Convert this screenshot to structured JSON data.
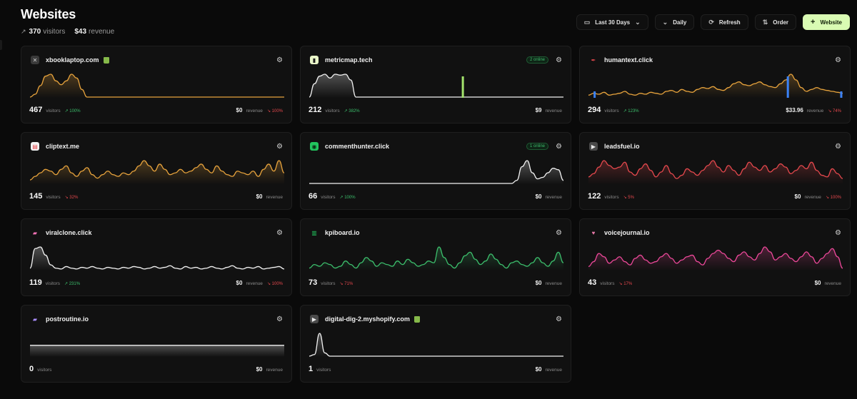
{
  "header": {
    "title": "Websites",
    "visitors": "370",
    "visitors_label": "visitors",
    "revenue": "$43",
    "revenue_label": "revenue"
  },
  "toolbar": {
    "range_label": "Last 30 Days",
    "interval_label": "Daily",
    "refresh_label": "Refresh",
    "order_label": "Order",
    "add_label": "Website"
  },
  "colors": {
    "accent": "#d9fbb3",
    "up": "#3cbf6c",
    "down": "#e5484d"
  },
  "sites": [
    {
      "name": "xbooklaptop.com",
      "favicon": "x-circle-icon",
      "fav_bg": "#3a3a3a",
      "fav_fg": "#cfcfcf",
      "fav_glyph": "✕",
      "shopify": true,
      "online": "",
      "visitors": "467",
      "visitors_label": "visitors",
      "visitors_change": "100%",
      "visitors_dir": "up",
      "revenue": "$0",
      "revenue_label": "revenue",
      "revenue_change": "100%",
      "revenue_dir": "down",
      "line_color": "#e6a23c",
      "series": [
        0,
        3,
        12,
        22,
        24,
        17,
        13,
        17,
        24,
        20,
        8,
        0,
        0,
        0,
        0,
        0,
        0,
        0,
        0,
        0,
        0,
        0,
        0,
        0,
        0,
        0,
        0,
        0,
        0,
        0,
        0,
        0,
        0,
        0,
        0,
        0,
        0,
        0,
        0,
        0,
        0,
        0,
        0,
        0,
        0,
        0,
        0,
        0,
        0,
        0
      ]
    },
    {
      "name": "metricmap.tech",
      "favicon": "bar-chart-icon",
      "fav_bg": "#e8f5c8",
      "fav_fg": "#1a1a1a",
      "fav_glyph": "▮",
      "shopify": false,
      "online": "2 online",
      "visitors": "212",
      "visitors_label": "visitors",
      "visitors_change": "382%",
      "visitors_dir": "up",
      "revenue": "$9",
      "revenue_label": "revenue",
      "revenue_change": "",
      "revenue_dir": "",
      "line_color": "#f2f2f2",
      "series": [
        0,
        14,
        22,
        24,
        20,
        24,
        23,
        24,
        18,
        0,
        0,
        0,
        0,
        0,
        0,
        0,
        0,
        0,
        0,
        0,
        0,
        0,
        0,
        0,
        0,
        0,
        0,
        0,
        0,
        0,
        0,
        0,
        0,
        0,
        0,
        0,
        0,
        0,
        0,
        0,
        0,
        0,
        0,
        0,
        0,
        0,
        0,
        0,
        0,
        0
      ],
      "bars": [
        {
          "x": 0.6,
          "v": 1.0
        }
      ],
      "bar_color": "#a3e36c"
    },
    {
      "name": "humantext.click",
      "favicon": "quill-icon",
      "fav_bg": "transparent",
      "fav_fg": "#e5484d",
      "fav_glyph": "✒",
      "shopify": false,
      "online": "",
      "visitors": "294",
      "visitors_label": "visitors",
      "visitors_change": "123%",
      "visitors_dir": "up",
      "revenue": "$33.96",
      "revenue_label": "revenue",
      "revenue_change": "74%",
      "revenue_dir": "down",
      "line_color": "#e6a23c",
      "series": [
        2,
        4,
        3,
        5,
        2,
        3,
        4,
        6,
        3,
        2,
        4,
        3,
        5,
        4,
        3,
        6,
        7,
        5,
        8,
        6,
        5,
        8,
        10,
        9,
        11,
        8,
        7,
        10,
        14,
        16,
        13,
        12,
        14,
        16,
        13,
        11,
        10,
        14,
        18,
        24,
        18,
        10,
        6,
        8,
        10,
        8,
        7,
        6,
        5,
        4
      ],
      "bars": [
        {
          "x": 0.02,
          "v": 0.3
        },
        {
          "x": 0.78,
          "v": 1.0
        },
        {
          "x": 0.99,
          "v": 0.3
        }
      ],
      "bar_color": "#3b82f6"
    },
    {
      "name": "cliptext.me",
      "favicon": "text-square-icon",
      "fav_bg": "#f2f2f2",
      "fav_fg": "#e5484d",
      "fav_glyph": "▤",
      "shopify": false,
      "online": "",
      "visitors": "145",
      "visitors_label": "visitors",
      "visitors_change": "32%",
      "visitors_dir": "down",
      "revenue": "$0",
      "revenue_label": "revenue",
      "revenue_change": "",
      "revenue_dir": "",
      "line_color": "#e6a23c",
      "series": [
        4,
        8,
        12,
        16,
        14,
        10,
        16,
        20,
        12,
        8,
        14,
        18,
        10,
        6,
        10,
        14,
        10,
        8,
        12,
        10,
        14,
        20,
        26,
        20,
        14,
        22,
        16,
        10,
        12,
        16,
        12,
        14,
        18,
        22,
        16,
        12,
        20,
        14,
        10,
        8,
        14,
        12,
        10,
        14,
        8,
        16,
        22,
        14,
        26,
        12
      ]
    },
    {
      "name": "commenthunter.click",
      "favicon": "chat-icon",
      "fav_bg": "#22c55e",
      "fav_fg": "#0a2a14",
      "fav_glyph": "◉",
      "shopify": false,
      "online": "1 online",
      "visitors": "66",
      "visitors_label": "visitors",
      "visitors_change": "100%",
      "visitors_dir": "up",
      "revenue": "$0",
      "revenue_label": "revenue",
      "revenue_change": "",
      "revenue_dir": "",
      "line_color": "#f2f2f2",
      "series": [
        0,
        0,
        0,
        0,
        0,
        0,
        0,
        0,
        0,
        0,
        0,
        0,
        0,
        0,
        0,
        0,
        0,
        0,
        0,
        0,
        0,
        0,
        0,
        0,
        0,
        0,
        0,
        0,
        0,
        0,
        0,
        0,
        0,
        0,
        0,
        0,
        0,
        0,
        0,
        0,
        4,
        22,
        30,
        14,
        6,
        8,
        14,
        20,
        18,
        4
      ]
    },
    {
      "name": "leadsfuel.io",
      "favicon": "play-circle-icon",
      "fav_bg": "#4a4a4a",
      "fav_fg": "#eaeaea",
      "fav_glyph": "▶",
      "shopify": false,
      "online": "",
      "visitors": "122",
      "visitors_label": "visitors",
      "visitors_change": "5%",
      "visitors_dir": "down",
      "revenue": "$0",
      "revenue_label": "revenue",
      "revenue_change": "100%",
      "revenue_dir": "down",
      "line_color": "#e5484d",
      "series": [
        8,
        12,
        20,
        28,
        22,
        18,
        20,
        26,
        14,
        10,
        18,
        24,
        16,
        8,
        14,
        22,
        12,
        6,
        10,
        18,
        14,
        10,
        16,
        22,
        28,
        20,
        14,
        22,
        16,
        10,
        18,
        26,
        20,
        16,
        22,
        14,
        18,
        24,
        20,
        12,
        16,
        22,
        18,
        26,
        16,
        10,
        8,
        18,
        12,
        6
      ]
    },
    {
      "name": "viralclone.click",
      "favicon": "flame-icon",
      "fav_bg": "transparent",
      "fav_fg": "#f472b6",
      "fav_glyph": "▰",
      "shopify": false,
      "online": "",
      "visitors": "119",
      "visitors_label": "visitors",
      "visitors_change": "231%",
      "visitors_dir": "up",
      "revenue": "$0",
      "revenue_label": "revenue",
      "revenue_change": "100%",
      "revenue_dir": "down",
      "line_color": "#f2f2f2",
      "series": [
        2,
        26,
        28,
        18,
        6,
        2,
        1,
        4,
        2,
        1,
        3,
        2,
        4,
        2,
        1,
        3,
        2,
        1,
        3,
        2,
        4,
        3,
        1,
        2,
        4,
        2,
        3,
        5,
        2,
        1,
        4,
        2,
        3,
        1,
        2,
        4,
        2,
        1,
        3,
        5,
        2,
        1,
        3,
        2,
        4,
        1,
        2,
        3,
        4,
        1
      ]
    },
    {
      "name": "kpiboard.io",
      "favicon": "columns-icon",
      "fav_bg": "transparent",
      "fav_fg": "#22c55e",
      "fav_glyph": "▥",
      "shopify": false,
      "online": "",
      "visitors": "73",
      "visitors_label": "visitors",
      "visitors_change": "71%",
      "visitors_dir": "down",
      "revenue": "$0",
      "revenue_label": "revenue",
      "revenue_change": "",
      "revenue_dir": "",
      "line_color": "#3cbf6c",
      "series": [
        2,
        6,
        4,
        8,
        6,
        2,
        4,
        10,
        6,
        2,
        8,
        14,
        10,
        4,
        8,
        6,
        4,
        10,
        6,
        12,
        8,
        4,
        6,
        10,
        8,
        26,
        14,
        6,
        2,
        8,
        16,
        20,
        12,
        6,
        10,
        18,
        12,
        6,
        2,
        8,
        10,
        6,
        4,
        8,
        14,
        8,
        4,
        10,
        20,
        8
      ]
    },
    {
      "name": "voicejournal.io",
      "favicon": "heart-icon",
      "fav_bg": "transparent",
      "fav_fg": "#e879a8",
      "fav_glyph": "♥",
      "shopify": false,
      "online": "",
      "visitors": "43",
      "visitors_label": "visitors",
      "visitors_change": "17%",
      "visitors_dir": "down",
      "revenue": "$0",
      "revenue_label": "revenue",
      "revenue_change": "",
      "revenue_dir": "",
      "line_color": "#ec4899",
      "series": [
        4,
        10,
        20,
        16,
        8,
        12,
        16,
        10,
        6,
        14,
        18,
        12,
        8,
        10,
        16,
        20,
        14,
        8,
        12,
        16,
        18,
        10,
        6,
        14,
        20,
        24,
        20,
        14,
        10,
        18,
        22,
        16,
        12,
        20,
        28,
        22,
        12,
        16,
        20,
        14,
        10,
        16,
        22,
        16,
        8,
        14,
        20,
        26,
        16,
        2
      ]
    },
    {
      "name": "postroutine.io",
      "favicon": "flame-icon",
      "fav_bg": "transparent",
      "fav_fg": "#a78bfa",
      "fav_glyph": "▰",
      "shopify": false,
      "online": "",
      "visitors": "0",
      "visitors_label": "visitors",
      "visitors_change": "",
      "visitors_dir": "",
      "revenue": "$0",
      "revenue_label": "revenue",
      "revenue_change": "",
      "revenue_dir": "",
      "line_color": "#f2f2f2",
      "series": [
        0,
        0,
        0,
        0,
        0,
        0,
        0,
        0,
        0,
        0,
        0,
        0,
        0,
        0,
        0,
        0,
        0,
        0,
        0,
        0,
        0,
        0,
        0,
        0,
        0,
        0,
        0,
        0,
        0,
        0,
        0,
        0,
        0,
        0,
        0,
        0,
        0,
        0,
        0,
        0,
        0,
        0,
        0,
        0,
        0,
        0,
        0,
        0,
        0,
        0
      ],
      "flat_level": 0.55
    },
    {
      "name": "digital-dig-2.myshopify.com",
      "favicon": "play-circle-icon",
      "fav_bg": "#4a4a4a",
      "fav_fg": "#eaeaea",
      "fav_glyph": "▶",
      "shopify": true,
      "online": "",
      "visitors": "1",
      "visitors_label": "visitors",
      "visitors_change": "",
      "visitors_dir": "",
      "revenue": "$0",
      "revenue_label": "revenue",
      "revenue_change": "",
      "revenue_dir": "",
      "line_color": "#f2f2f2",
      "series": [
        0,
        2,
        28,
        4,
        0,
        0,
        0,
        0,
        0,
        0,
        0,
        0,
        0,
        0,
        0,
        0,
        0,
        0,
        0,
        0,
        0,
        0,
        0,
        0,
        0,
        0,
        0,
        0,
        0,
        0,
        0,
        0,
        0,
        0,
        0,
        0,
        0,
        0,
        0,
        0,
        0,
        0,
        0,
        0,
        0,
        0,
        0,
        0,
        0,
        0
      ]
    }
  ]
}
